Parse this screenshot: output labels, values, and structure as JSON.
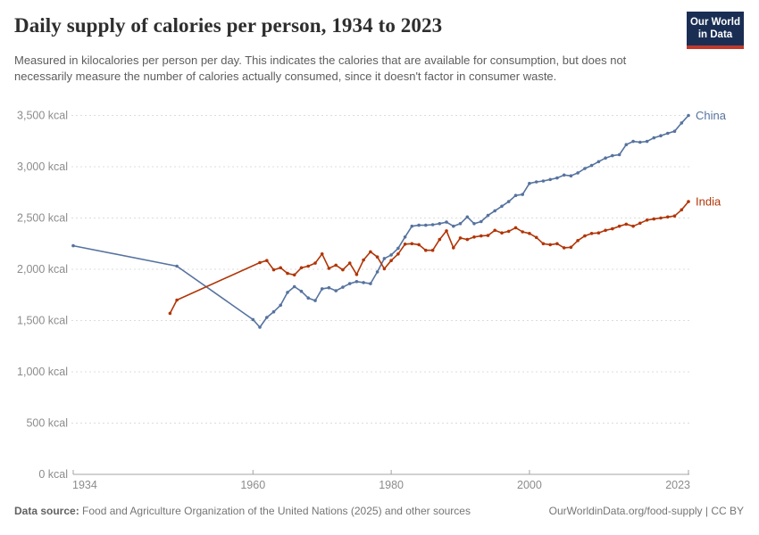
{
  "header": {
    "title": "Daily supply of calories per person, 1934 to 2023",
    "subtitle": "Measured in kilocalories per person per day. This indicates the calories that are available for consumption, but does not necessarily measure the number of calories actually consumed, since it doesn't factor in consumer waste.",
    "logo": {
      "line1": "Our World",
      "line2": "in Data",
      "bg_color": "#1a2e54",
      "stripe_color": "#c0392b"
    }
  },
  "footer": {
    "source_label": "Data source:",
    "source_text": " Food and Agriculture Organization of the United Nations (2025) and other sources",
    "credit": "OurWorldinData.org/food-supply | CC BY"
  },
  "chart_data": {
    "type": "line",
    "title": "Daily supply of calories per person, 1934 to 2023",
    "xlabel": "",
    "ylabel": "",
    "unit": "kcal",
    "xlim": [
      1934,
      2023
    ],
    "ylim": [
      0,
      3500
    ],
    "grid": "horizontal-dashed",
    "legend_position": "line-end-labels",
    "x_ticks": [
      "1934",
      "1960",
      "1980",
      "2000",
      "2023"
    ],
    "y_ticks": [
      0,
      500,
      1000,
      1500,
      2000,
      2500,
      3000,
      3500
    ],
    "y_tick_labels": [
      "0 kcal",
      "500 kcal",
      "1,000 kcal",
      "1,500 kcal",
      "2,000 kcal",
      "2,500 kcal",
      "3,000 kcal",
      "3,500 kcal"
    ],
    "colors": {
      "grid": "#dcdcdc",
      "axis": "#a3a3a3",
      "tick_text": "#8c8c8c"
    },
    "series": [
      {
        "name": "China",
        "color": "#56739f",
        "points": [
          [
            1934,
            2230
          ],
          [
            1949,
            2030
          ],
          [
            1960,
            1510
          ],
          [
            1961,
            1435
          ],
          [
            1962,
            1530
          ],
          [
            1963,
            1585
          ],
          [
            1964,
            1650
          ],
          [
            1965,
            1775
          ],
          [
            1966,
            1830
          ],
          [
            1967,
            1785
          ],
          [
            1968,
            1720
          ],
          [
            1969,
            1695
          ],
          [
            1970,
            1810
          ],
          [
            1971,
            1820
          ],
          [
            1972,
            1790
          ],
          [
            1973,
            1825
          ],
          [
            1974,
            1860
          ],
          [
            1975,
            1880
          ],
          [
            1976,
            1870
          ],
          [
            1977,
            1860
          ],
          [
            1978,
            1975
          ],
          [
            1979,
            2105
          ],
          [
            1980,
            2140
          ],
          [
            1981,
            2205
          ],
          [
            1982,
            2315
          ],
          [
            1983,
            2420
          ],
          [
            1984,
            2430
          ],
          [
            1985,
            2430
          ],
          [
            1986,
            2435
          ],
          [
            1987,
            2445
          ],
          [
            1988,
            2460
          ],
          [
            1989,
            2420
          ],
          [
            1990,
            2445
          ],
          [
            1991,
            2510
          ],
          [
            1992,
            2445
          ],
          [
            1993,
            2465
          ],
          [
            1994,
            2525
          ],
          [
            1995,
            2570
          ],
          [
            1996,
            2615
          ],
          [
            1997,
            2660
          ],
          [
            1998,
            2720
          ],
          [
            1999,
            2730
          ],
          [
            2000,
            2837
          ],
          [
            2001,
            2852
          ],
          [
            2002,
            2861
          ],
          [
            2003,
            2876
          ],
          [
            2004,
            2890
          ],
          [
            2005,
            2919
          ],
          [
            2006,
            2911
          ],
          [
            2007,
            2940
          ],
          [
            2008,
            2983
          ],
          [
            2009,
            3012
          ],
          [
            2010,
            3050
          ],
          [
            2011,
            3085
          ],
          [
            2012,
            3108
          ],
          [
            2013,
            3117
          ],
          [
            2014,
            3216
          ],
          [
            2015,
            3247
          ],
          [
            2016,
            3239
          ],
          [
            2017,
            3247
          ],
          [
            2018,
            3282
          ],
          [
            2019,
            3303
          ],
          [
            2020,
            3326
          ],
          [
            2021,
            3346
          ],
          [
            2022,
            3427
          ],
          [
            2023,
            3500
          ]
        ]
      },
      {
        "name": "India",
        "color": "#b13507",
        "points": [
          [
            1948,
            1570
          ],
          [
            1949,
            1700
          ],
          [
            1961,
            2065
          ],
          [
            1962,
            2085
          ],
          [
            1963,
            1995
          ],
          [
            1964,
            2015
          ],
          [
            1965,
            1960
          ],
          [
            1966,
            1945
          ],
          [
            1967,
            2015
          ],
          [
            1968,
            2030
          ],
          [
            1969,
            2060
          ],
          [
            1970,
            2150
          ],
          [
            1971,
            2010
          ],
          [
            1972,
            2040
          ],
          [
            1973,
            1995
          ],
          [
            1974,
            2060
          ],
          [
            1975,
            1950
          ],
          [
            1976,
            2090
          ],
          [
            1977,
            2170
          ],
          [
            1978,
            2120
          ],
          [
            1979,
            2005
          ],
          [
            1980,
            2085
          ],
          [
            1981,
            2150
          ],
          [
            1982,
            2245
          ],
          [
            1983,
            2250
          ],
          [
            1984,
            2240
          ],
          [
            1985,
            2185
          ],
          [
            1986,
            2185
          ],
          [
            1987,
            2290
          ],
          [
            1988,
            2375
          ],
          [
            1989,
            2210
          ],
          [
            1990,
            2305
          ],
          [
            1991,
            2290
          ],
          [
            1992,
            2315
          ],
          [
            1993,
            2325
          ],
          [
            1994,
            2330
          ],
          [
            1995,
            2380
          ],
          [
            1996,
            2355
          ],
          [
            1997,
            2370
          ],
          [
            1998,
            2405
          ],
          [
            1999,
            2365
          ],
          [
            2000,
            2350
          ],
          [
            2001,
            2310
          ],
          [
            2002,
            2250
          ],
          [
            2003,
            2240
          ],
          [
            2004,
            2250
          ],
          [
            2005,
            2210
          ],
          [
            2006,
            2215
          ],
          [
            2007,
            2280
          ],
          [
            2008,
            2325
          ],
          [
            2009,
            2350
          ],
          [
            2010,
            2355
          ],
          [
            2011,
            2380
          ],
          [
            2012,
            2395
          ],
          [
            2013,
            2420
          ],
          [
            2014,
            2440
          ],
          [
            2015,
            2420
          ],
          [
            2016,
            2450
          ],
          [
            2017,
            2480
          ],
          [
            2018,
            2490
          ],
          [
            2019,
            2500
          ],
          [
            2020,
            2510
          ],
          [
            2021,
            2520
          ],
          [
            2022,
            2580
          ],
          [
            2023,
            2660
          ]
        ]
      }
    ]
  }
}
